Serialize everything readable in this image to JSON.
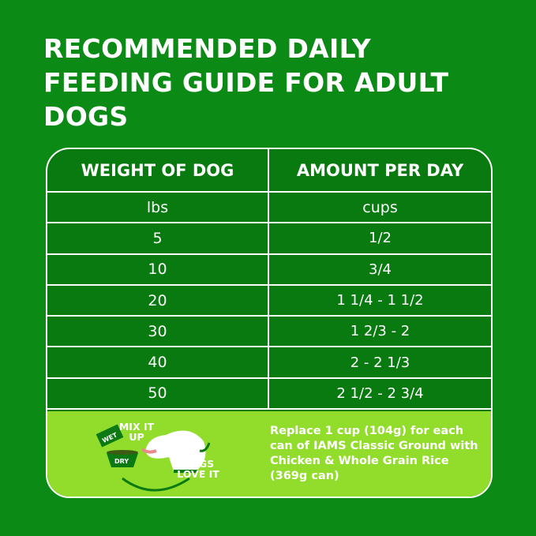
{
  "title": "RECOMMENDED DAILY FEEDING GUIDE FOR ADULT DOGS",
  "table": {
    "headers": [
      "WEIGHT OF DOG",
      "AMOUNT PER DAY"
    ],
    "units": [
      "lbs",
      "cups"
    ],
    "rows": [
      {
        "weight": "5",
        "amount": "1/2"
      },
      {
        "weight": "10",
        "amount": "3/4"
      },
      {
        "weight": "20",
        "amount": "1 1/4 - 1 1/2"
      },
      {
        "weight": "30",
        "amount": "1 2/3 - 2"
      },
      {
        "weight": "40",
        "amount": "2 - 2 1/3"
      },
      {
        "weight": "50",
        "amount": "2 1/2 - 2 3/4"
      }
    ]
  },
  "tip": {
    "mix_label": "MIX IT UP",
    "wet_label": "WET",
    "dry_label": "DRY",
    "dogs_label": "DOGS LOVE IT",
    "text": "Replace 1 cup (104g) for each can of IAMS Classic Ground with Chicken & Whole Grain Rice (369g can)"
  },
  "colors": {
    "background": "#0b8a16",
    "table_fill": "#087a10",
    "tip_fill": "#92dd2c"
  }
}
